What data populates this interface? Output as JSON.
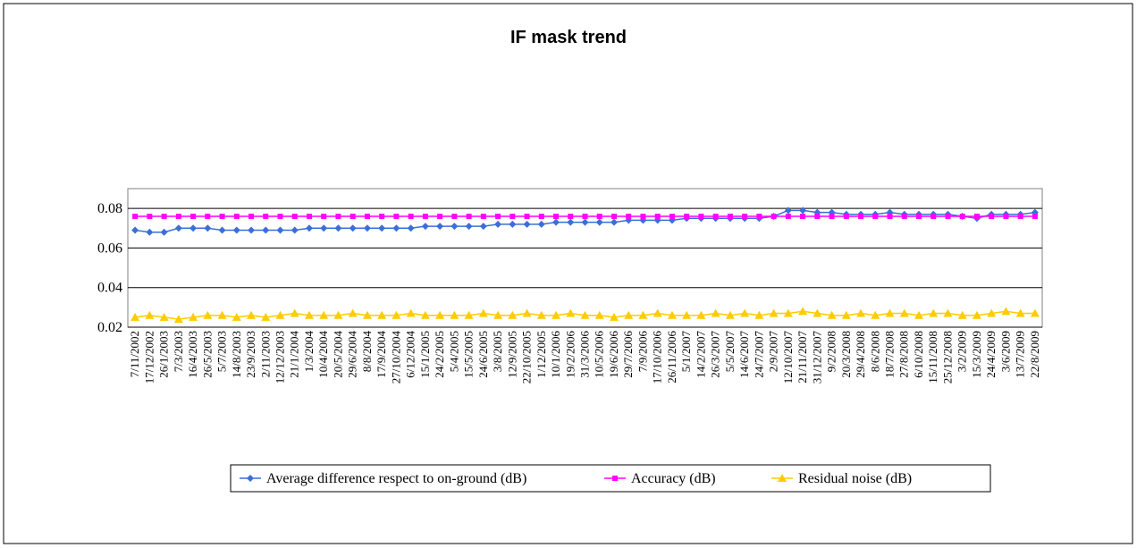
{
  "chart_data": {
    "type": "line",
    "title": "IF mask trend",
    "categories": [
      "7/11/2002",
      "17/12/2002",
      "26/1/2003",
      "7/3/2003",
      "16/4/2003",
      "26/5/2003",
      "5/7/2003",
      "14/8/2003",
      "23/9/2003",
      "2/11/2003",
      "12/12/2003",
      "21/1/2004",
      "1/3/2004",
      "10/4/2004",
      "20/5/2004",
      "29/6/2004",
      "8/8/2004",
      "17/9/2004",
      "27/10/2004",
      "6/12/2004",
      "15/1/2005",
      "24/2/2005",
      "5/4/2005",
      "15/5/2005",
      "24/6/2005",
      "3/8/2005",
      "12/9/2005",
      "22/10/2005",
      "1/12/2005",
      "10/1/2006",
      "19/2/2006",
      "31/3/2006",
      "10/5/2006",
      "19/6/2006",
      "29/7/2006",
      "7/9/2006",
      "17/10/2006",
      "26/11/2006",
      "5/1/2007",
      "14/2/2007",
      "26/3/2007",
      "5/5/2007",
      "14/6/2007",
      "24/7/2007",
      "2/9/2007",
      "12/10/2007",
      "21/11/2007",
      "31/12/2007",
      "9/2/2008",
      "20/3/2008",
      "29/4/2008",
      "8/6/2008",
      "18/7/2008",
      "27/8/2008",
      "6/10/2008",
      "15/11/2008",
      "25/12/2008",
      "3/2/2009",
      "15/3/2009",
      "24/4/2009",
      "3/6/2009",
      "13/7/2009",
      "22/8/2009"
    ],
    "series": [
      {
        "name": "Average difference respect to on-ground (dB)",
        "color": "#3a6fd8",
        "marker": "diamond",
        "values": [
          0.069,
          0.068,
          0.068,
          0.07,
          0.07,
          0.07,
          0.069,
          0.069,
          0.069,
          0.069,
          0.069,
          0.069,
          0.07,
          0.07,
          0.07,
          0.07,
          0.07,
          0.07,
          0.07,
          0.07,
          0.071,
          0.071,
          0.071,
          0.071,
          0.071,
          0.072,
          0.072,
          0.072,
          0.072,
          0.073,
          0.073,
          0.073,
          0.073,
          0.073,
          0.074,
          0.074,
          0.074,
          0.074,
          0.075,
          0.075,
          0.075,
          0.075,
          0.075,
          0.075,
          0.076,
          0.079,
          0.079,
          0.078,
          0.078,
          0.077,
          0.077,
          0.077,
          0.078,
          0.077,
          0.077,
          0.077,
          0.077,
          0.076,
          0.075,
          0.077,
          0.077,
          0.077,
          0.078
        ]
      },
      {
        "name": "Accuracy (dB)",
        "color": "#ff00ff",
        "marker": "square",
        "values": [
          0.076,
          0.076,
          0.076,
          0.076,
          0.076,
          0.076,
          0.076,
          0.076,
          0.076,
          0.076,
          0.076,
          0.076,
          0.076,
          0.076,
          0.076,
          0.076,
          0.076,
          0.076,
          0.076,
          0.076,
          0.076,
          0.076,
          0.076,
          0.076,
          0.076,
          0.076,
          0.076,
          0.076,
          0.076,
          0.076,
          0.076,
          0.076,
          0.076,
          0.076,
          0.076,
          0.076,
          0.076,
          0.076,
          0.076,
          0.076,
          0.076,
          0.076,
          0.076,
          0.076,
          0.076,
          0.076,
          0.076,
          0.076,
          0.076,
          0.076,
          0.076,
          0.076,
          0.076,
          0.076,
          0.076,
          0.076,
          0.076,
          0.076,
          0.076,
          0.076,
          0.076,
          0.076,
          0.076
        ]
      },
      {
        "name": "Residual noise (dB)",
        "color": "#ffcc00",
        "marker": "triangle",
        "values": [
          0.025,
          0.026,
          0.025,
          0.024,
          0.025,
          0.026,
          0.026,
          0.025,
          0.026,
          0.025,
          0.026,
          0.027,
          0.026,
          0.026,
          0.026,
          0.027,
          0.026,
          0.026,
          0.026,
          0.027,
          0.026,
          0.026,
          0.026,
          0.026,
          0.027,
          0.026,
          0.026,
          0.027,
          0.026,
          0.026,
          0.027,
          0.026,
          0.026,
          0.025,
          0.026,
          0.026,
          0.027,
          0.026,
          0.026,
          0.026,
          0.027,
          0.026,
          0.027,
          0.026,
          0.027,
          0.027,
          0.028,
          0.027,
          0.026,
          0.026,
          0.027,
          0.026,
          0.027,
          0.027,
          0.026,
          0.027,
          0.027,
          0.026,
          0.026,
          0.027,
          0.028,
          0.027,
          0.027
        ]
      }
    ],
    "ylim": [
      0.02,
      0.09
    ],
    "yticks": [
      0.02,
      0.04,
      0.06,
      0.08
    ],
    "grid": true
  }
}
